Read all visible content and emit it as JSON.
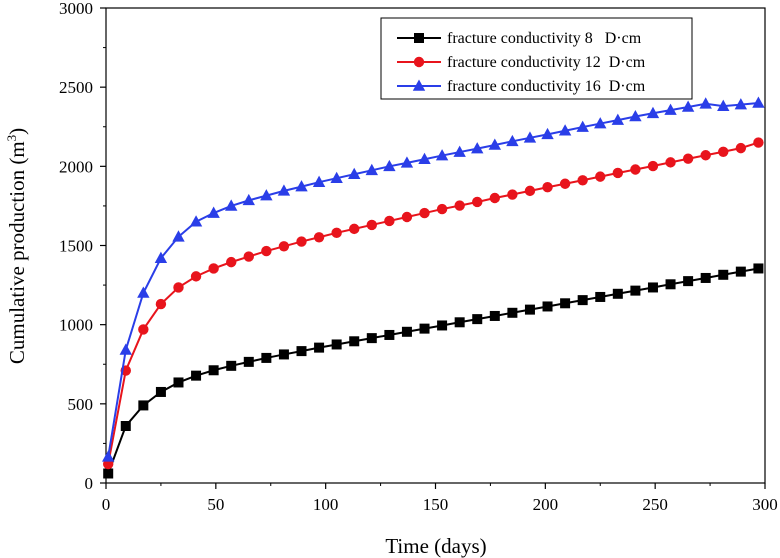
{
  "chart_data": {
    "type": "line",
    "title": "",
    "xlabel": "Time (days)",
    "ylabel_main": "Cumulative production (m",
    "ylabel_sup": "3",
    "ylabel_close": ")",
    "xlim": [
      0,
      300
    ],
    "ylim": [
      0,
      3000
    ],
    "xticks": [
      0,
      50,
      100,
      150,
      200,
      250,
      300
    ],
    "yticks": [
      0,
      500,
      1000,
      1500,
      2000,
      2500,
      3000
    ],
    "grid": false,
    "legend_position": "top-right",
    "x": [
      1,
      9,
      17,
      25,
      33,
      41,
      49,
      57,
      65,
      73,
      81,
      89,
      97,
      105,
      113,
      121,
      129,
      137,
      145,
      153,
      161,
      169,
      177,
      185,
      193,
      201,
      209,
      217,
      225,
      233,
      241,
      249,
      257,
      265,
      273,
      281,
      289,
      297
    ],
    "series": [
      {
        "name": "fracture conductivity 8   D·cm",
        "color": "#000000",
        "marker": "square",
        "values": [
          60,
          360,
          490,
          575,
          635,
          678,
          712,
          740,
          765,
          790,
          812,
          833,
          855,
          875,
          895,
          915,
          935,
          955,
          975,
          995,
          1015,
          1035,
          1055,
          1075,
          1095,
          1115,
          1135,
          1155,
          1175,
          1195,
          1215,
          1235,
          1255,
          1275,
          1295,
          1315,
          1335,
          1355
        ]
      },
      {
        "name": "fracture conductivity 12  D·cm",
        "color": "#e8141c",
        "marker": "circle",
        "values": [
          120,
          710,
          970,
          1130,
          1235,
          1305,
          1355,
          1395,
          1430,
          1465,
          1495,
          1525,
          1552,
          1580,
          1605,
          1630,
          1655,
          1680,
          1705,
          1730,
          1752,
          1775,
          1800,
          1822,
          1845,
          1868,
          1890,
          1912,
          1935,
          1958,
          1980,
          2002,
          2025,
          2048,
          2070,
          2092,
          2115,
          2150
        ]
      },
      {
        "name": "fracture conductivity 16  D·cm",
        "color": "#2a3ee8",
        "marker": "triangle",
        "values": [
          165,
          840,
          1200,
          1420,
          1555,
          1650,
          1705,
          1750,
          1785,
          1815,
          1845,
          1872,
          1900,
          1925,
          1950,
          1975,
          2000,
          2022,
          2045,
          2068,
          2090,
          2112,
          2135,
          2158,
          2180,
          2202,
          2225,
          2248,
          2270,
          2292,
          2315,
          2335,
          2355,
          2375,
          2395,
          2380,
          2390,
          2400
        ]
      }
    ]
  }
}
